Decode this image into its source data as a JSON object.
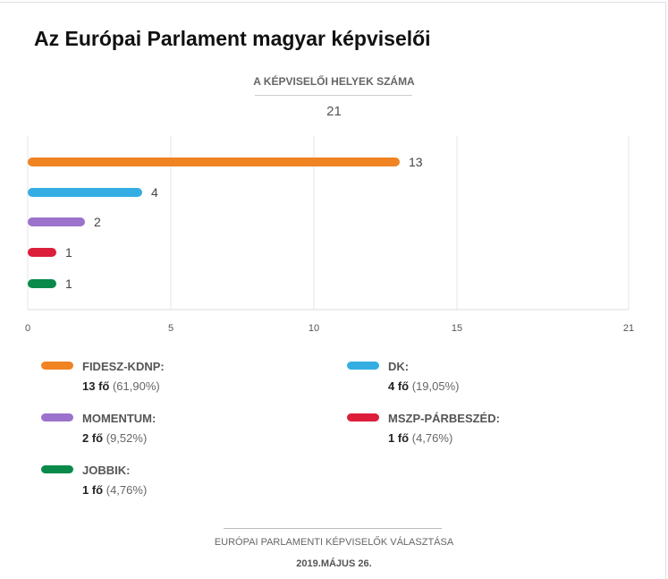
{
  "title": "Az Európai Parlament magyar képviselői",
  "subtitle": "A KÉPVISELŐI HELYEK SZÁMA",
  "total": "21",
  "footer": {
    "line1": "EURÓPAI PARLAMENTI KÉPVISELŐK VÁLASZTÁSA",
    "line2": "2019.MÁJUS 26."
  },
  "chart_data": {
    "type": "bar",
    "orientation": "horizontal",
    "categories": [
      "FIDESZ-KDNP",
      "DK",
      "MOMENTUM",
      "MSZP-PÁRBESZÉD",
      "JOBBIK"
    ],
    "values": [
      13,
      4,
      2,
      1,
      1
    ],
    "colors": [
      "#f08322",
      "#34aee2",
      "#9b72cc",
      "#dc1e3a",
      "#0a8a4a"
    ],
    "xlim": [
      0,
      21
    ],
    "xticks": [
      0,
      5,
      10,
      15,
      21
    ],
    "grid": true,
    "legend_position": "bottom"
  },
  "legend": [
    {
      "name": "FIDESZ-KDNP:",
      "count": "13 fő",
      "pct": "(61,90%)"
    },
    {
      "name": "DK:",
      "count": "4 fő",
      "pct": "(19,05%)"
    },
    {
      "name": "MOMENTUM:",
      "count": "2 fő",
      "pct": "(9,52%)"
    },
    {
      "name": "MSZP-PÁRBESZÉD:",
      "count": "1 fő",
      "pct": "(4,76%)"
    },
    {
      "name": "JOBBIK:",
      "count": "1 fő",
      "pct": "(4,76%)"
    }
  ]
}
